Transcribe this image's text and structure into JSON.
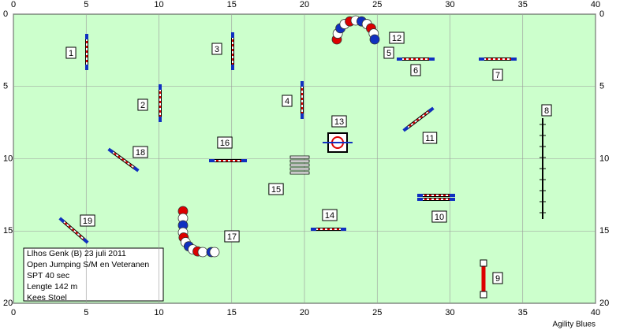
{
  "course": {
    "x_axis": {
      "lim": [
        0,
        40
      ],
      "ticks": [
        0,
        5,
        10,
        15,
        20,
        25,
        30,
        35,
        40
      ]
    },
    "y_axis": {
      "lim": [
        0,
        20
      ],
      "ticks": [
        0,
        5,
        10,
        15,
        20
      ]
    },
    "obstacles": [
      "1",
      "2",
      "3",
      "4",
      "5",
      "6",
      "7",
      "8",
      "9",
      "10",
      "11",
      "12",
      "13",
      "14",
      "15",
      "16",
      "17",
      "18",
      "19"
    ],
    "info": [
      "Llhos Genk (B) 23 juli 2011",
      "Open Jumping S/M en Veteranen",
      "SPT 40 sec",
      "Lengte 142 m",
      "Kees Stoel"
    ],
    "footer": "Agility Blues"
  }
}
